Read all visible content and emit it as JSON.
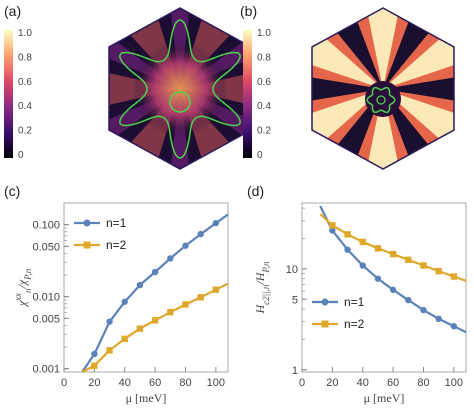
{
  "panels": {
    "a": {
      "label": "(a)",
      "colorbar_ticks": [
        "1.0",
        "0.8",
        "0.6",
        "0.4",
        "0.2",
        "0"
      ]
    },
    "b": {
      "label": "(b)",
      "colorbar_ticks": [
        "1.0",
        "0.8",
        "0.6",
        "0.4",
        "0.2",
        "0"
      ]
    }
  },
  "colors": {
    "n1": "#5b82b8",
    "n2": "#e0a82a",
    "contour": "#4bd34b",
    "hexbg": "#1a0f2e"
  },
  "chart_data": [
    {
      "panel": "(c)",
      "type": "line",
      "scale_y": "log",
      "xlabel": "μ [meV]",
      "ylabel": "χ",
      "ylabel_super": "xx",
      "ylabel_sub": "n",
      "ylabel_tail": "/χ",
      "ylabel_tail_sub": "P,n",
      "xlim": [
        0,
        108
      ],
      "ylim": [
        0.0009,
        0.2
      ],
      "xticks": [
        0,
        20,
        40,
        60,
        80,
        100
      ],
      "yticks": [
        0.001,
        0.005,
        0.01,
        0.05,
        0.1
      ],
      "ytick_labels": [
        "0.001",
        "0.005",
        "0.010",
        "0.050",
        "0.100"
      ],
      "legend_position": "top-left",
      "series": [
        {
          "name": "n=1",
          "marker": "circle",
          "x": [
            20,
            30,
            40,
            50,
            60,
            70,
            80,
            90,
            100
          ],
          "y": [
            0.0016,
            0.0045,
            0.0085,
            0.0145,
            0.022,
            0.034,
            0.051,
            0.074,
            0.105
          ]
        },
        {
          "name": "n=2",
          "marker": "square",
          "x": [
            20,
            30,
            40,
            50,
            60,
            70,
            80,
            90,
            100
          ],
          "y": [
            0.0011,
            0.0018,
            0.0026,
            0.0036,
            0.0047,
            0.0061,
            0.0078,
            0.0098,
            0.0125
          ]
        }
      ]
    },
    {
      "panel": "(d)",
      "type": "line",
      "scale_y": "log",
      "xlabel": "μ [meV]",
      "ylabel": "H",
      "ylabel_sub": "c2||,n",
      "ylabel_tail": "/H",
      "ylabel_tail_sub": "P,n",
      "xlim": [
        0,
        108
      ],
      "ylim": [
        0.95,
        45
      ],
      "xticks": [
        0,
        20,
        40,
        60,
        80,
        100
      ],
      "yticks": [
        1,
        5,
        10
      ],
      "ytick_labels": [
        "1",
        "5",
        "10"
      ],
      "legend_position": "bottom-left",
      "series": [
        {
          "name": "n=1",
          "marker": "circle",
          "x": [
            20,
            30,
            40,
            50,
            60,
            70,
            80,
            90,
            100
          ],
          "y": [
            24,
            15.5,
            10.8,
            8.0,
            6.2,
            4.9,
            3.9,
            3.2,
            2.7
          ]
        },
        {
          "name": "n=2",
          "marker": "square",
          "x": [
            20,
            30,
            40,
            50,
            60,
            70,
            80,
            90,
            100
          ],
          "y": [
            27,
            22,
            18.5,
            16,
            14,
            12.3,
            10.8,
            9.5,
            8.4
          ]
        }
      ]
    }
  ]
}
